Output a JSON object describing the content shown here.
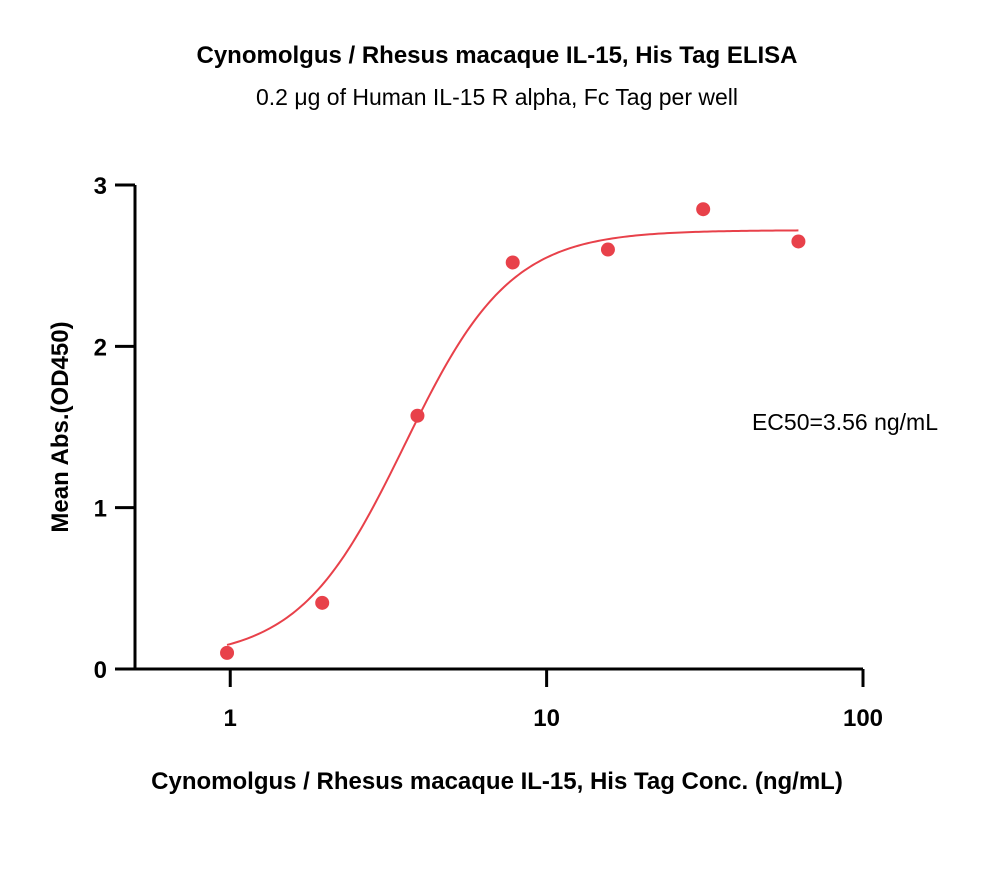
{
  "chart_data": {
    "type": "scatter",
    "title": "Cynomolgus / Rhesus macaque IL-15, His Tag ELISA",
    "subtitle": "0.2 μg of Human IL-15 R alpha, Fc Tag per well",
    "xlabel": "Cynomolgus / Rhesus macaque IL-15, His Tag Conc. (ng/mL)",
    "ylabel": "Mean Abs.(OD450)",
    "x_scale": "log",
    "xlim": [
      0.5,
      100
    ],
    "ylim": [
      0,
      3
    ],
    "x_ticks": [
      "1",
      "10",
      "100"
    ],
    "y_ticks": [
      "0",
      "1",
      "2",
      "3"
    ],
    "annotation": "EC50=3.56 ng/mL",
    "series": [
      {
        "color": "#e8414a",
        "x": [
          0.977,
          1.953,
          3.906,
          7.813,
          15.625,
          31.25,
          62.5
        ],
        "y": [
          0.1,
          0.41,
          1.57,
          2.52,
          2.6,
          2.85,
          2.65
        ]
      }
    ],
    "fit": {
      "model": "4PL",
      "bottom": 0.06,
      "top": 2.72,
      "ec50": 3.56,
      "hill": 2.6,
      "color": "#e8414a"
    },
    "grid": false
  }
}
